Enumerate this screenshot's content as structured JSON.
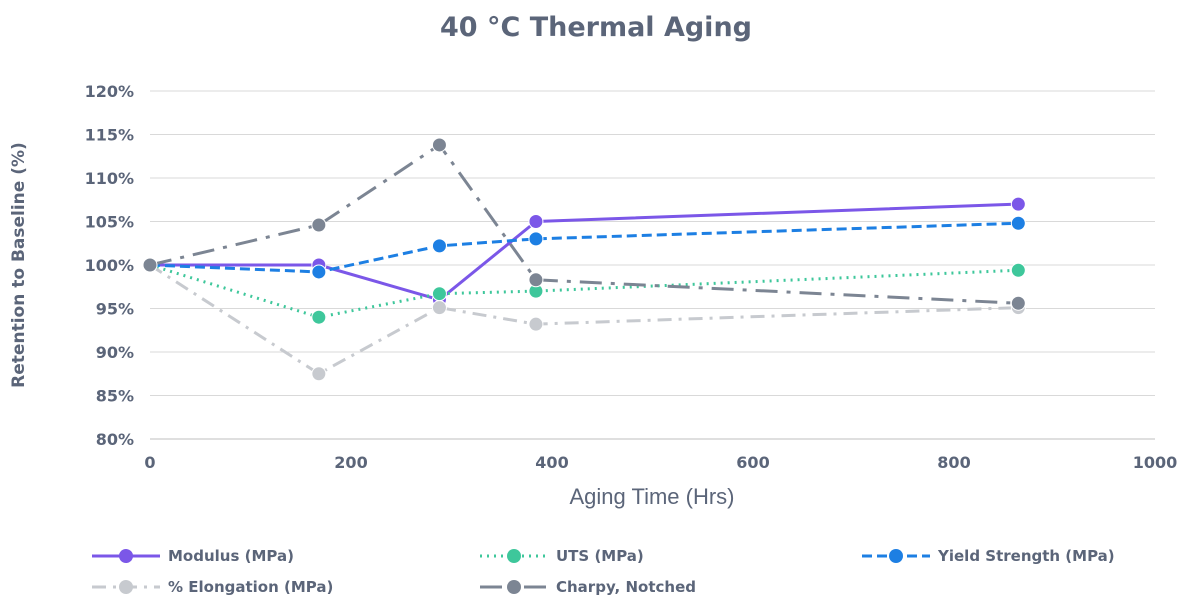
{
  "chart_data": {
    "type": "line",
    "title": "40 °C Thermal Aging",
    "xlabel": "Aging Time (Hrs)",
    "ylabel": "Retention to Baseline (%)",
    "xlim": [
      0,
      1000
    ],
    "ylim": [
      80,
      120
    ],
    "x_ticks": [
      0,
      200,
      400,
      600,
      800,
      1000
    ],
    "x_tick_labels": [
      "0",
      "200",
      "400",
      "600",
      "800",
      "1000"
    ],
    "y_ticks": [
      80,
      85,
      90,
      95,
      100,
      105,
      110,
      115,
      120
    ],
    "y_tick_labels": [
      "80%",
      "85%",
      "90%",
      "95%",
      "100%",
      "105%",
      "110%",
      "115%",
      "120%"
    ],
    "grid": "horizontal",
    "legend_position": "bottom",
    "x": [
      0,
      168,
      288,
      384,
      864
    ],
    "series": [
      {
        "name": "Modulus (MPa)",
        "values": [
          100,
          100,
          96,
          105,
          107
        ],
        "color": "#7b57e8",
        "dash": "solid"
      },
      {
        "name": "UTS (MPa)",
        "values": [
          100,
          94,
          96.7,
          97,
          99.4
        ],
        "color": "#3ec79b",
        "dash": "dotted"
      },
      {
        "name": "Yield Strength (MPa)",
        "values": [
          100,
          99.2,
          102.2,
          103,
          104.8
        ],
        "color": "#1d7fe3",
        "dash": "dashed"
      },
      {
        "name": "% Elongation (MPa)",
        "values": [
          100,
          87.5,
          95.1,
          93.2,
          95.1
        ],
        "color": "#c7cacf",
        "dash": "dashdot"
      },
      {
        "name": "Charpy, Notched",
        "values": [
          100,
          104.6,
          113.8,
          98.3,
          95.6
        ],
        "color": "#7c8593",
        "dash": "longdashdot"
      }
    ]
  }
}
